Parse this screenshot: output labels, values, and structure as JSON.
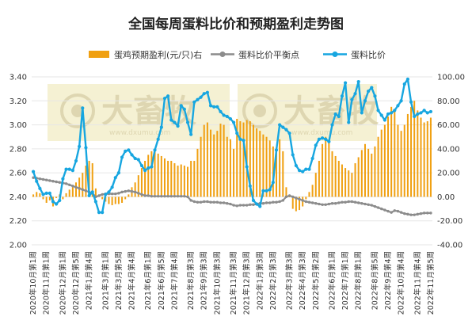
{
  "chart_data": {
    "type": "bar+line",
    "title": "全国每周蛋料比价和预期盈利走势图",
    "watermark": "大畜牧",
    "watermark_url": "www.dxumu.com",
    "legend": [
      {
        "name": "蛋鸡预期盈利(元/只)右",
        "kind": "bar",
        "color": "#f0a011"
      },
      {
        "name": "蛋料比价平衡点",
        "kind": "line-marker",
        "color": "#8c8c8c"
      },
      {
        "name": "蛋料比价",
        "kind": "line-marker",
        "color": "#17a6e0"
      }
    ],
    "y_left": {
      "min": 2.0,
      "max": 3.4,
      "step": 0.2,
      "ticks": [
        "2.00",
        "2.20",
        "2.40",
        "2.60",
        "2.80",
        "3.00",
        "3.20",
        "3.40"
      ]
    },
    "y_right": {
      "min": -40,
      "max": 100,
      "step": 20,
      "ticks": [
        "-40.00",
        "-20.00",
        "0.00",
        "20.00",
        "40.00",
        "60.00",
        "80.00",
        "100.00"
      ]
    },
    "x_tick_labels": [
      "2020年10月第1周",
      "2020年11月第1周",
      "2020年12月第1周",
      "2020年12月第5周",
      "2021年1月第4周",
      "2021年3月第1周",
      "2021年3月第5周",
      "2021年4月第4周",
      "2021年6月第1周",
      "2021年6月第5周",
      "2021年7月第4周",
      "2021年8月第3周",
      "2021年9月第3周",
      "2021年10月第3周",
      "2021年11月第3周",
      "2021年12月第3周",
      "2022年1月第3周",
      "2022年2月第3周",
      "2022年3月第3周",
      "2022年4月第3周",
      "2022年5月第2周",
      "2022年6月第1周",
      "2022年7月第1周",
      "2022年8月第1周",
      "2022年8月第5周",
      "2022年9月第4周",
      "2022年10月第4周",
      "2022年11月第4周",
      "2022年11月第5周"
    ],
    "profit": [
      2,
      4,
      3,
      -2,
      -5,
      -3,
      -8,
      -1,
      2,
      -2,
      3,
      6,
      8,
      12,
      16,
      20,
      26,
      30,
      28,
      7,
      2,
      -2,
      -4,
      -6,
      -7,
      -6,
      -6,
      -5,
      -2,
      2,
      8,
      12,
      18,
      24,
      30,
      35,
      38,
      39,
      36,
      34,
      32,
      30,
      30,
      28,
      26,
      27,
      26,
      25,
      30,
      30,
      40,
      50,
      60,
      62,
      56,
      52,
      55,
      61,
      60,
      50,
      48,
      40,
      65,
      63,
      62,
      64,
      63,
      60,
      57,
      55,
      52,
      50,
      47,
      42,
      41,
      48,
      38,
      8,
      0,
      -10,
      -12,
      -11,
      -8,
      -2,
      4,
      10,
      20,
      30,
      44,
      50,
      45,
      38,
      34,
      30,
      27,
      24,
      22,
      20,
      28,
      33,
      39,
      44,
      40,
      36,
      42,
      50,
      56,
      60,
      67,
      75,
      72,
      60,
      55,
      60,
      69,
      75,
      80,
      72,
      66,
      62,
      63,
      66
    ],
    "balance": [
      2.56,
      2.555,
      2.55,
      2.545,
      2.54,
      2.535,
      2.53,
      2.525,
      2.52,
      2.515,
      2.51,
      2.5,
      2.49,
      2.48,
      2.47,
      2.46,
      2.45,
      2.44,
      2.43,
      2.4,
      2.41,
      2.42,
      2.425,
      2.425,
      2.425,
      2.425,
      2.43,
      2.44,
      2.445,
      2.45,
      2.445,
      2.44,
      2.43,
      2.42,
      2.41,
      2.41,
      2.405,
      2.405,
      2.405,
      2.405,
      2.405,
      2.405,
      2.405,
      2.405,
      2.405,
      2.405,
      2.405,
      2.4,
      2.37,
      2.36,
      2.355,
      2.355,
      2.36,
      2.36,
      2.355,
      2.355,
      2.355,
      2.35,
      2.35,
      2.345,
      2.34,
      2.33,
      2.325,
      2.33,
      2.33,
      2.33,
      2.335,
      2.335,
      2.34,
      2.345,
      2.345,
      2.35,
      2.35,
      2.355,
      2.355,
      2.36,
      2.37,
      2.4,
      2.41,
      2.4,
      2.39,
      2.38,
      2.37,
      2.36,
      2.355,
      2.35,
      2.345,
      2.34,
      2.335,
      2.335,
      2.34,
      2.345,
      2.345,
      2.35,
      2.355,
      2.355,
      2.36,
      2.36,
      2.355,
      2.35,
      2.345,
      2.34,
      2.335,
      2.33,
      2.32,
      2.31,
      2.3,
      2.29,
      2.28,
      2.27,
      2.285,
      2.28,
      2.27,
      2.26,
      2.255,
      2.25,
      2.25,
      2.255,
      2.26,
      2.265,
      2.265,
      2.265
    ],
    "ratio": [
      2.61,
      2.53,
      2.47,
      2.42,
      2.43,
      2.43,
      2.36,
      2.34,
      2.37,
      2.55,
      2.63,
      2.63,
      2.62,
      2.7,
      2.82,
      3.14,
      2.81,
      2.41,
      2.44,
      2.36,
      2.27,
      2.27,
      2.42,
      2.44,
      2.48,
      2.56,
      2.6,
      2.73,
      2.78,
      2.79,
      2.75,
      2.72,
      2.71,
      2.66,
      2.62,
      2.64,
      2.65,
      2.79,
      2.88,
      2.98,
      3.22,
      3.24,
      3.04,
      3.02,
      2.99,
      3.16,
      3.13,
      3.02,
      2.92,
      3.19,
      3.21,
      3.23,
      3.26,
      3.27,
      3.16,
      3.15,
      3.15,
      3.11,
      3.08,
      3.07,
      3.05,
      3.02,
      2.93,
      2.88,
      2.87,
      2.65,
      2.49,
      2.37,
      2.34,
      2.32,
      2.45,
      2.45,
      2.46,
      2.52,
      2.79,
      3.0,
      2.98,
      2.96,
      2.93,
      2.75,
      2.66,
      2.62,
      2.61,
      2.63,
      2.63,
      2.72,
      2.83,
      2.88,
      2.89,
      2.88,
      2.86,
      3.0,
      3.09,
      3.07,
      3.24,
      3.35,
      3.02,
      3.21,
      3.26,
      3.36,
      3.1,
      3.2,
      3.28,
      3.31,
      3.24,
      3.12,
      3.08,
      3.04,
      3.09,
      3.1,
      3.12,
      3.16,
      3.2,
      3.34,
      3.38,
      3.19,
      3.07,
      3.09,
      3.1,
      3.12,
      3.1,
      3.11
    ]
  }
}
